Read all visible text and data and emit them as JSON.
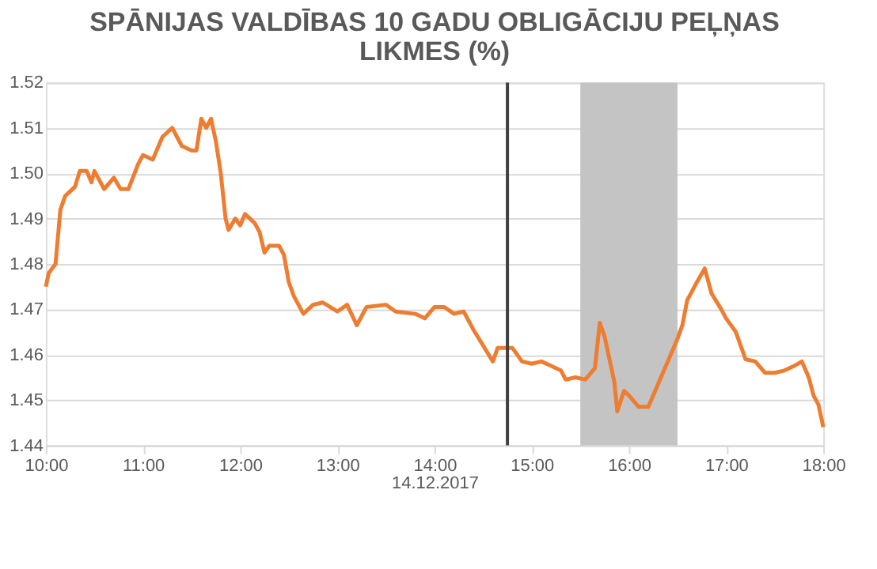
{
  "chart_data": {
    "type": "line",
    "title": "SPĀNIJAS VALDĪBAS 10 GADU OBLIGĀCIJU PEĻŅAS LIKMES (%)",
    "xlabel": "14.12.2017",
    "x": [
      10.0,
      10.03,
      10.1,
      10.15,
      10.2,
      10.3,
      10.35,
      10.42,
      10.47,
      10.5,
      10.6,
      10.7,
      10.77,
      10.85,
      10.95,
      11.0,
      11.1,
      11.2,
      11.3,
      11.4,
      11.5,
      11.55,
      11.6,
      11.65,
      11.7,
      11.75,
      11.8,
      11.85,
      11.88,
      11.95,
      12.0,
      12.05,
      12.15,
      12.2,
      12.25,
      12.3,
      12.4,
      12.45,
      12.5,
      12.55,
      12.65,
      12.75,
      12.85,
      13.0,
      13.1,
      13.2,
      13.3,
      13.5,
      13.6,
      13.8,
      13.9,
      14.0,
      14.1,
      14.2,
      14.3,
      14.4,
      14.5,
      14.6,
      14.65,
      14.8,
      14.9,
      15.0,
      15.1,
      15.2,
      15.3,
      15.35,
      15.45,
      15.55,
      15.65,
      15.7,
      15.75,
      15.85,
      15.88,
      15.95,
      16.0,
      16.1,
      16.2,
      16.3,
      16.4,
      16.5,
      16.55,
      16.6,
      16.7,
      16.78,
      16.85,
      16.95,
      17.0,
      17.1,
      17.2,
      17.3,
      17.4,
      17.5,
      17.6,
      17.7,
      17.78,
      17.85,
      17.9,
      17.95,
      18.0
    ],
    "series": [
      {
        "color": "#ed7d31",
        "values": [
          1.475,
          1.478,
          1.48,
          1.492,
          1.495,
          1.497,
          1.5005,
          1.5005,
          1.498,
          1.5005,
          1.4965,
          1.499,
          1.4965,
          1.4965,
          1.502,
          1.504,
          1.503,
          1.508,
          1.51,
          1.506,
          1.505,
          1.505,
          1.512,
          1.51,
          1.512,
          1.507,
          1.5,
          1.49,
          1.4875,
          1.49,
          1.4885,
          1.491,
          1.489,
          1.487,
          1.4825,
          1.484,
          1.484,
          1.482,
          1.476,
          1.473,
          1.469,
          1.471,
          1.4715,
          1.4695,
          1.471,
          1.4665,
          1.4705,
          1.471,
          1.4695,
          1.469,
          1.468,
          1.4705,
          1.4705,
          1.469,
          1.4695,
          1.4655,
          1.462,
          1.4585,
          1.4615,
          1.4615,
          1.4585,
          1.458,
          1.4585,
          1.4575,
          1.4565,
          1.4545,
          1.455,
          1.4545,
          1.457,
          1.467,
          1.464,
          1.454,
          1.4475,
          1.452,
          1.451,
          1.4485,
          1.4485,
          1.4535,
          1.4585,
          1.4635,
          1.4665,
          1.472,
          1.476,
          1.479,
          1.4735,
          1.47,
          1.468,
          1.465,
          1.459,
          1.4585,
          1.456,
          1.456,
          1.4565,
          1.4575,
          1.4585,
          1.455,
          1.451,
          1.449,
          1.444
        ]
      }
    ],
    "xlim": [
      10,
      18
    ],
    "xticks": [
      {
        "value": 10,
        "label": "10:00"
      },
      {
        "value": 11,
        "label": "11:00"
      },
      {
        "value": 12,
        "label": "12:00"
      },
      {
        "value": 13,
        "label": "13:00"
      },
      {
        "value": 14,
        "label": "14:00"
      },
      {
        "value": 15,
        "label": "15:00"
      },
      {
        "value": 16,
        "label": "16:00"
      },
      {
        "value": 17,
        "label": "17:00"
      },
      {
        "value": 18,
        "label": "18:00"
      }
    ],
    "ylim": [
      1.44,
      1.52
    ],
    "yticks": [
      {
        "value": 1.44,
        "label": "1.44"
      },
      {
        "value": 1.45,
        "label": "1.45"
      },
      {
        "value": 1.46,
        "label": "1.46"
      },
      {
        "value": 1.47,
        "label": "1.47"
      },
      {
        "value": 1.48,
        "label": "1.48"
      },
      {
        "value": 1.49,
        "label": "1.49"
      },
      {
        "value": 1.5,
        "label": "1.50"
      },
      {
        "value": 1.51,
        "label": "1.51"
      },
      {
        "value": 1.52,
        "label": "1.52"
      }
    ],
    "ref_lines": [
      {
        "axis": "x",
        "value": 14.75,
        "color": "#404040"
      }
    ],
    "bands": [
      {
        "axis": "x",
        "from": 15.5,
        "to": 16.5,
        "color": "#c4c4c4"
      }
    ],
    "grid": "y",
    "marker": "none",
    "line_style": "solid"
  }
}
